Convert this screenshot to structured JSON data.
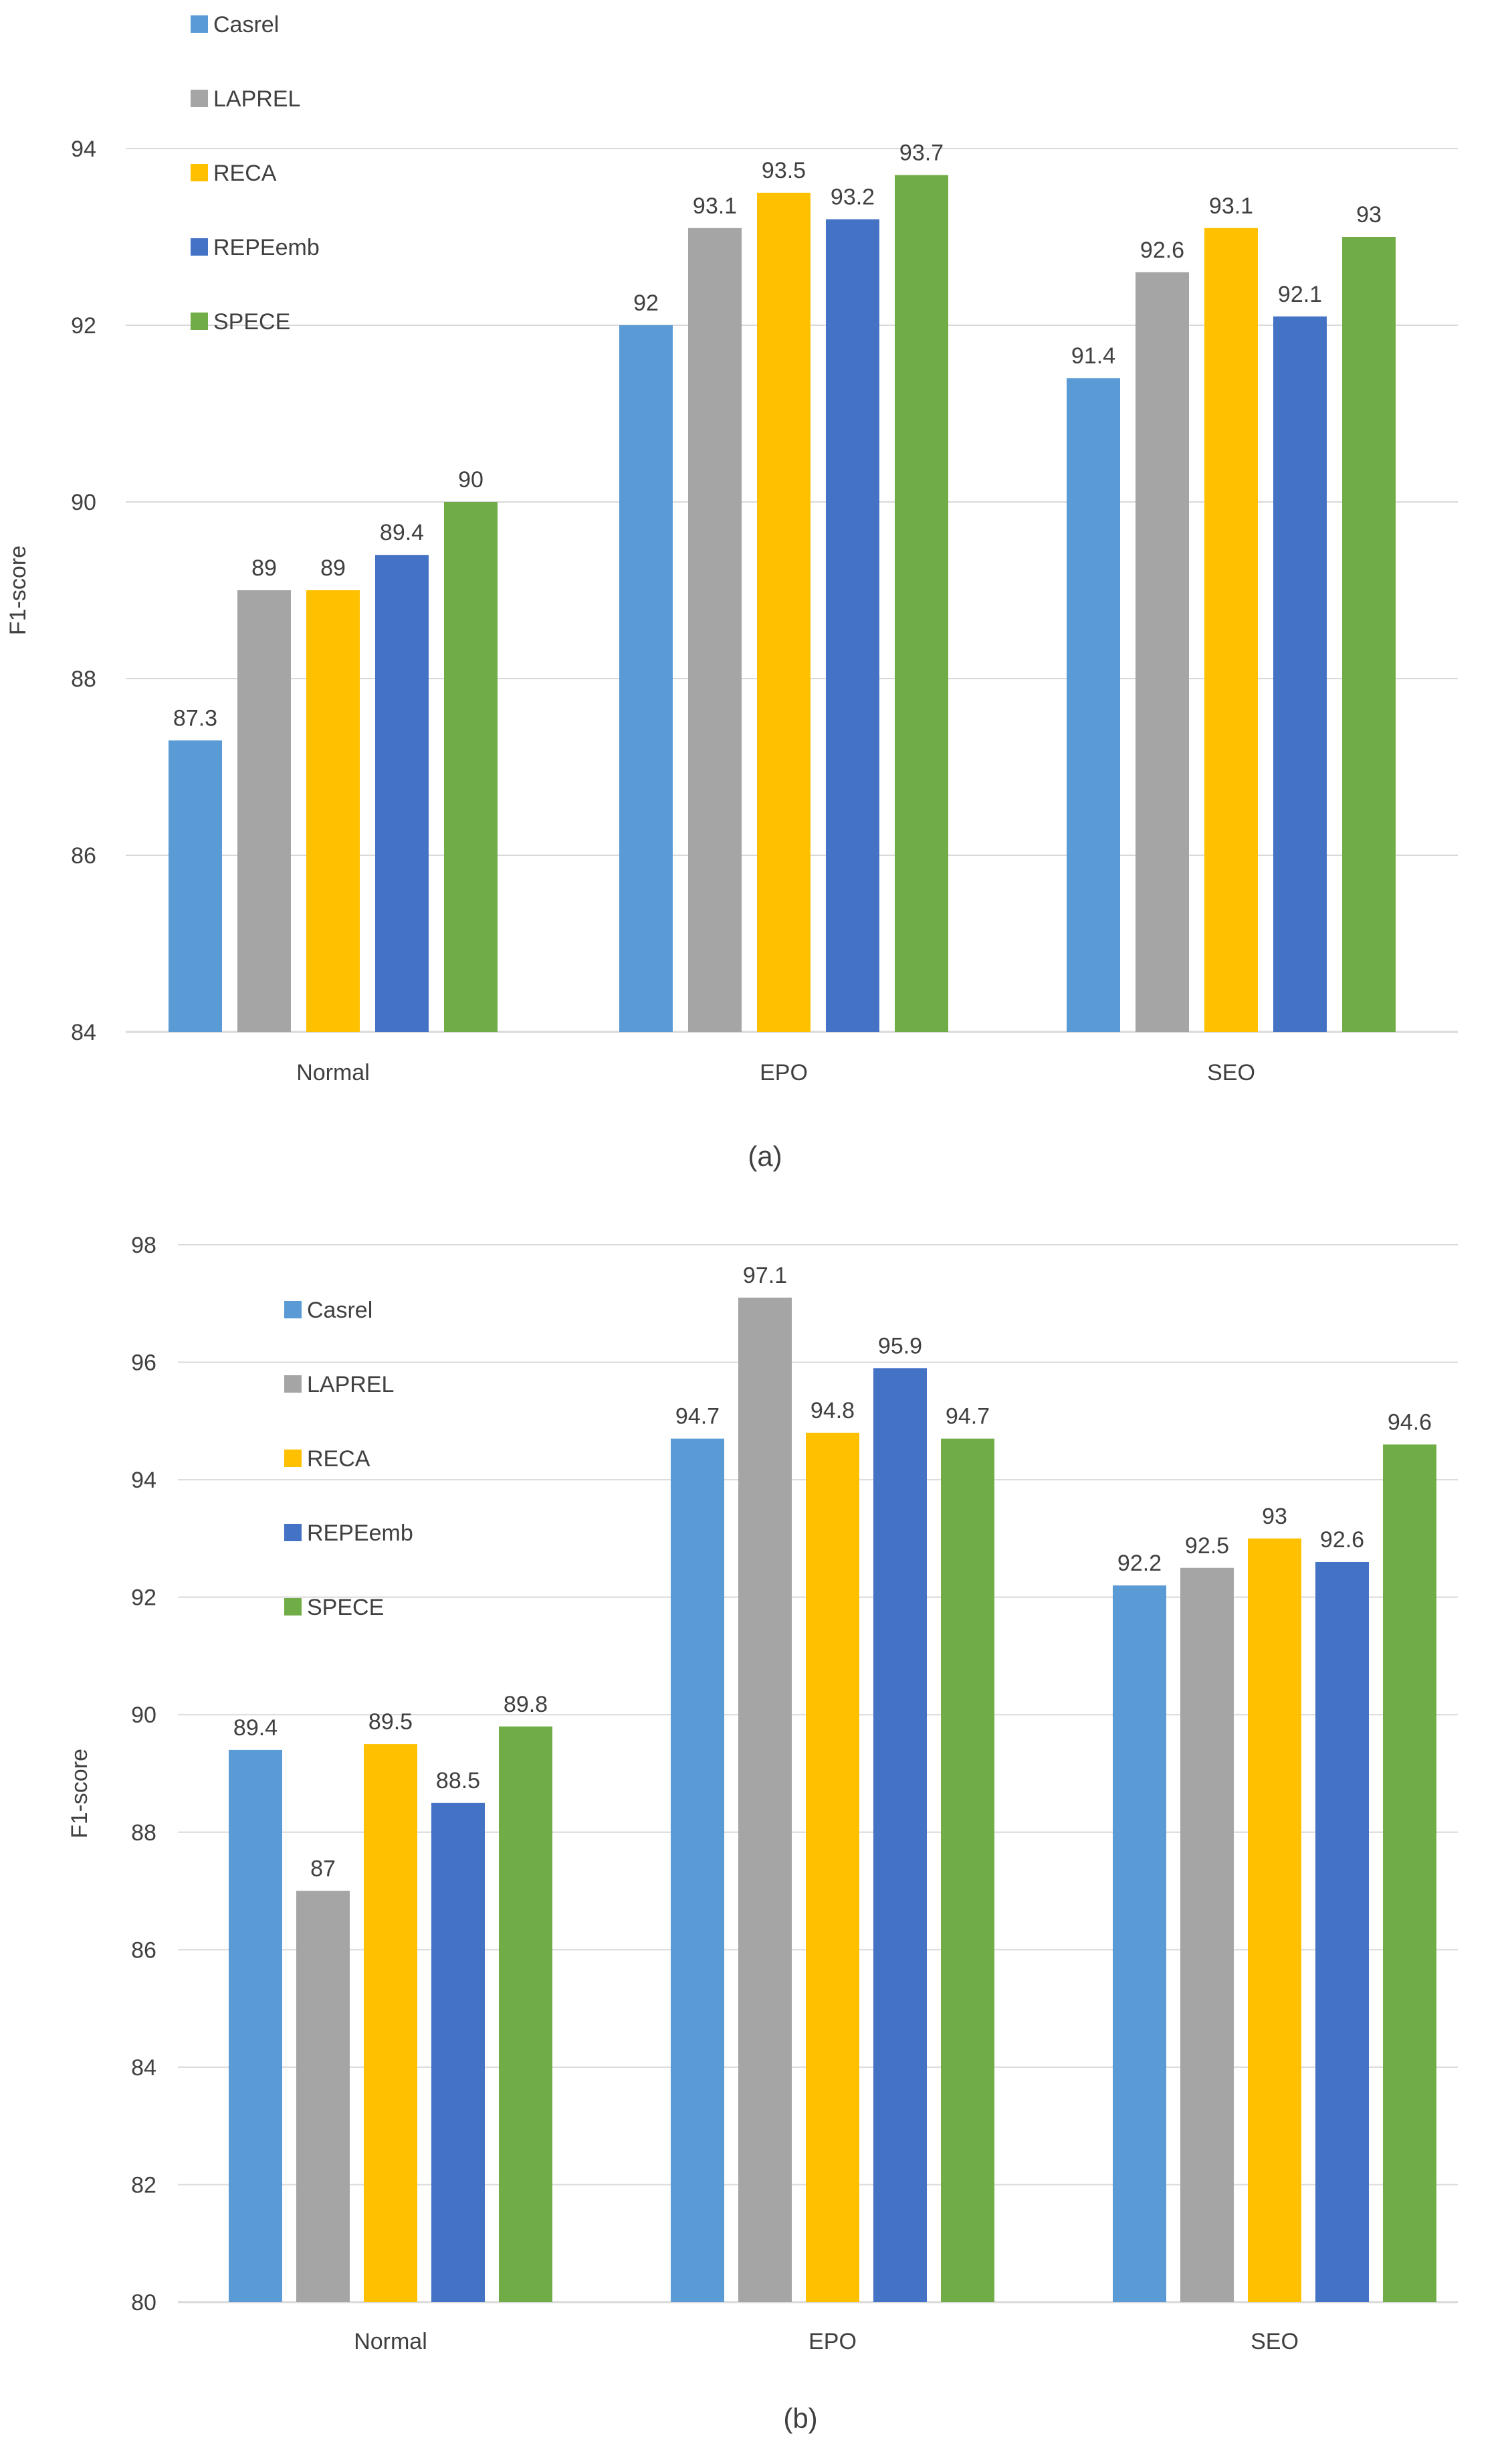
{
  "colors": {
    "Casrel": "#5B9BD5",
    "LAPREL": "#A5A5A5",
    "RECA": "#FFC000",
    "REPEemb": "#4472C4",
    "SPECE": "#70AD47",
    "grid": "#D9D9D9",
    "text": "#404040"
  },
  "chart_data": [
    {
      "type": "bar",
      "caption": "(a)",
      "ylabel": "F1-score",
      "ylim": [
        84,
        94
      ],
      "yticks": [
        84,
        86,
        88,
        90,
        92,
        94
      ],
      "grid": true,
      "legend_position": "top-left",
      "categories": [
        "Normal",
        "EPO",
        "SEO"
      ],
      "series": [
        {
          "name": "Casrel",
          "values": [
            87.3,
            92,
            91.4
          ]
        },
        {
          "name": "LAPREL",
          "values": [
            89,
            93.1,
            92.6
          ]
        },
        {
          "name": "RECA",
          "values": [
            89,
            93.5,
            93.1
          ]
        },
        {
          "name": "REPEemb",
          "values": [
            89.4,
            93.2,
            92.1
          ]
        },
        {
          "name": "SPECE",
          "values": [
            90,
            93.7,
            93
          ]
        }
      ]
    },
    {
      "type": "bar",
      "caption": "(b)",
      "ylabel": "F1-score",
      "ylim": [
        80,
        98
      ],
      "yticks": [
        80,
        82,
        84,
        86,
        88,
        90,
        92,
        94,
        96,
        98
      ],
      "grid": true,
      "legend_position": "top-left",
      "categories": [
        "Normal",
        "EPO",
        "SEO"
      ],
      "series": [
        {
          "name": "Casrel",
          "values": [
            89.4,
            94.7,
            92.2
          ]
        },
        {
          "name": "LAPREL",
          "values": [
            87,
            97.1,
            92.5
          ]
        },
        {
          "name": "RECA",
          "values": [
            89.5,
            94.8,
            93
          ]
        },
        {
          "name": "REPEemb",
          "values": [
            88.5,
            95.9,
            92.6
          ]
        },
        {
          "name": "SPECE",
          "values": [
            89.8,
            94.7,
            94.6
          ]
        }
      ]
    }
  ]
}
